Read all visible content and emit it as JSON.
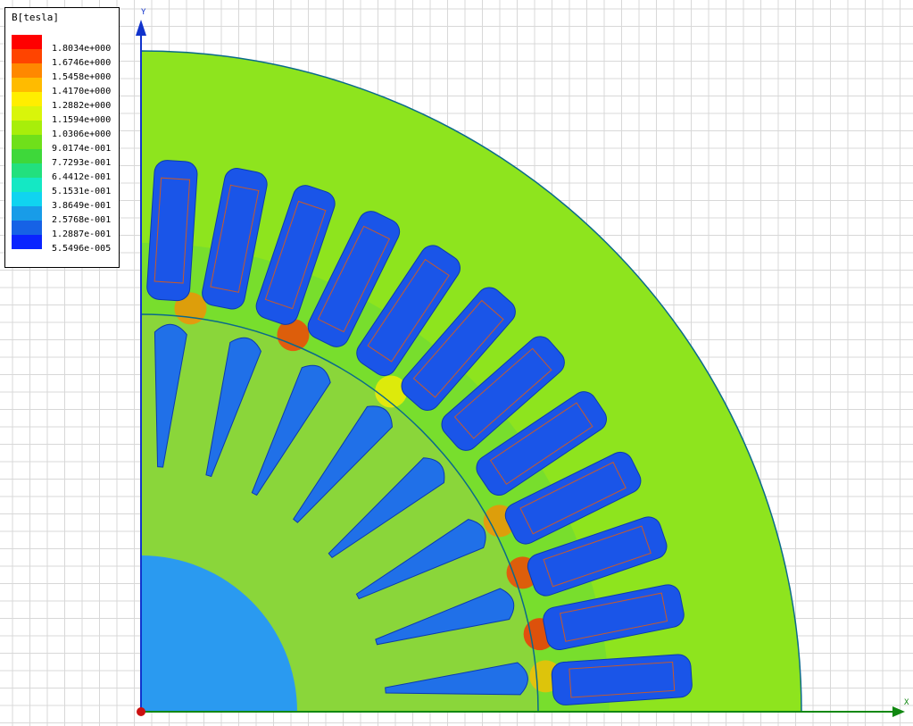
{
  "legend": {
    "title": "B[tesla]",
    "entries": [
      {
        "label": "1.8034e+000",
        "color": "#ff0000"
      },
      {
        "label": "1.6746e+000",
        "color": "#ff4400"
      },
      {
        "label": "1.5458e+000",
        "color": "#ff8800"
      },
      {
        "label": "1.4170e+000",
        "color": "#ffbb00"
      },
      {
        "label": "1.2882e+000",
        "color": "#ffee00"
      },
      {
        "label": "1.1594e+000",
        "color": "#d9f50a"
      },
      {
        "label": "1.0306e+000",
        "color": "#a8ee0a"
      },
      {
        "label": "9.0174e-001",
        "color": "#6fe01a"
      },
      {
        "label": "7.7293e-001",
        "color": "#3ed83a"
      },
      {
        "label": "6.4412e-001",
        "color": "#22e07e"
      },
      {
        "label": "5.1531e-001",
        "color": "#14e8c4"
      },
      {
        "label": "3.8649e-001",
        "color": "#10d4f0"
      },
      {
        "label": "2.5768e-001",
        "color": "#189ce8"
      },
      {
        "label": "1.2887e-001",
        "color": "#1662e6"
      },
      {
        "label": "5.5496e-005",
        "color": "#0a24ff"
      }
    ]
  },
  "axes": {
    "x_label": "X",
    "y_label": "Y",
    "x_color": "#118811",
    "y_color": "#1133cc"
  },
  "colors": {
    "grid": "#d8d8d8",
    "stator_yoke": "#8ee41e",
    "stator_inner": "#66d83a",
    "rotor": "#8ad63a",
    "shaft": "#2a9af0",
    "slot": "#1a55e8",
    "rotor_bar": "#2070e8",
    "outline": "#0a6a8a",
    "origin": "#cc1111"
  }
}
